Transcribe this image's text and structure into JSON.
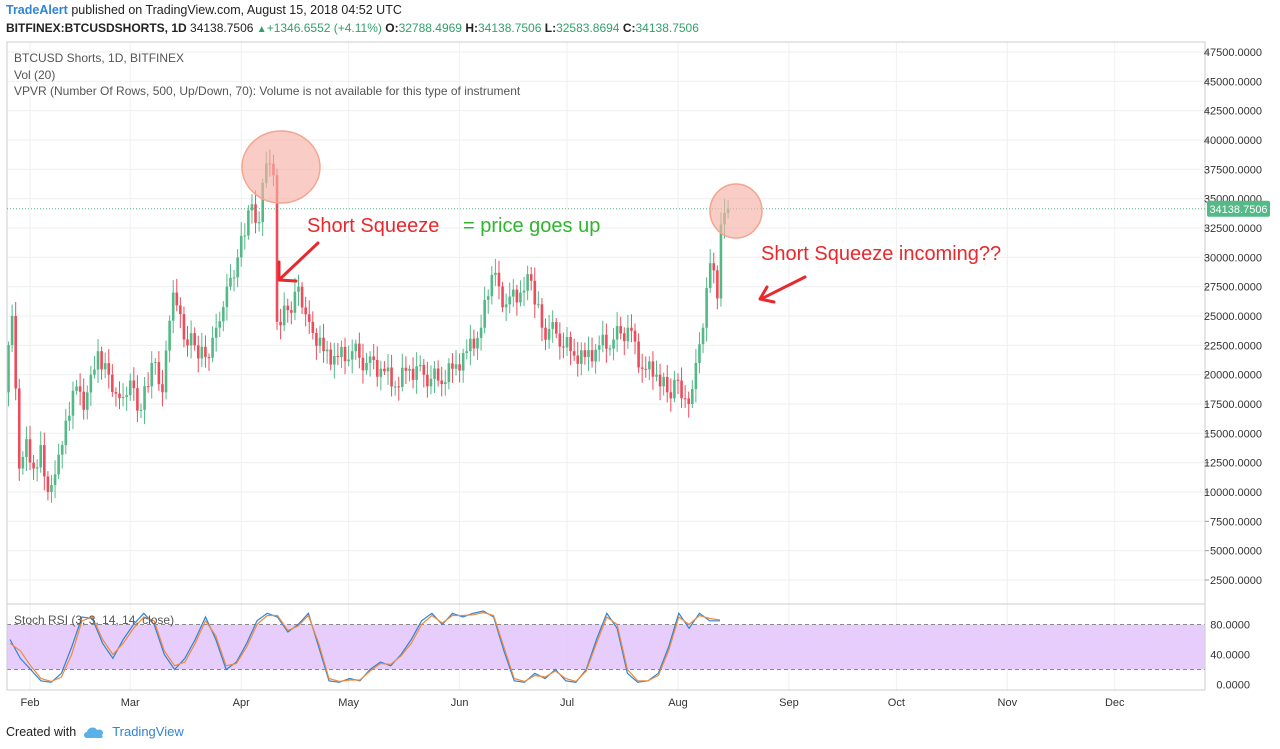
{
  "header": {
    "publisher": "TradeAlert",
    "published_text": "published on TradingView.com, August 15, 2018 04:52 UTC",
    "symbol": "BITFINEX:BTCUSDSHORTS, 1D",
    "last": "34138.7506",
    "change": "+1346.6552 (+4.11%)",
    "o_label": "O:",
    "o_value": "32788.4969",
    "h_label": "H:",
    "h_value": "34138.7506",
    "l_label": "L:",
    "l_value": "32583.8694",
    "c_label": "C:",
    "c_value": "34138.7506"
  },
  "legend": {
    "title": "BTCUSD Shorts, 1D, BITFINEX",
    "vol": "Vol (20)",
    "vpvr": "VPVR (Number Of Rows, 500, Up/Down, 70): Volume is not available for this type of instrument",
    "stoch": "Stoch RSI (3, 3, 14, 14, close)"
  },
  "annotations": {
    "squeeze_label": "Short Squeeze",
    "squeeze_eq": "= price goes up",
    "incoming": "Short Squeeze incoming??"
  },
  "footer": {
    "created_with": "Created with",
    "brand": "TradingView"
  },
  "colors": {
    "up": "#53b987",
    "down": "#eb4d5c",
    "annotation_red": "#e8282d",
    "annotation_green": "#2fb52f",
    "rsi_band": "#e3c4fb"
  },
  "chart_data": [
    {
      "type": "candlestick",
      "ylim": [
        0,
        48500
      ],
      "y_ticks": [
        "2500.0000",
        "5000.0000",
        "7500.0000",
        "10000.0000",
        "12500.0000",
        "15000.0000",
        "17500.0000",
        "20000.0000",
        "22500.0000",
        "25000.0000",
        "27500.0000",
        "30000.0000",
        "32500.0000",
        "35000.0000",
        "37500.0000",
        "40000.0000",
        "42500.0000",
        "45000.0000",
        "47500.0000"
      ],
      "x_ticks": [
        "Feb",
        "Mar",
        "Apr",
        "May",
        "Jun",
        "Jul",
        "Aug",
        "Sep",
        "Oct",
        "Nov",
        "Dec"
      ],
      "last_price_label": "34138.7506",
      "last_price": 34138.75,
      "approx_close_series": [
        {
          "x": "2018-01-25",
          "close": 18500
        },
        {
          "x": "2018-01-27",
          "close": 25000
        },
        {
          "x": "2018-01-29",
          "close": 12000
        },
        {
          "x": "2018-01-31",
          "close": 14500
        },
        {
          "x": "2018-02-02",
          "close": 12000
        },
        {
          "x": "2018-02-04",
          "close": 14000
        },
        {
          "x": "2018-02-06",
          "close": 10000
        },
        {
          "x": "2018-02-08",
          "close": 11500
        },
        {
          "x": "2018-02-10",
          "close": 14000
        },
        {
          "x": "2018-02-12",
          "close": 16500
        },
        {
          "x": "2018-02-14",
          "close": 19000
        },
        {
          "x": "2018-02-16",
          "close": 17000
        },
        {
          "x": "2018-02-18",
          "close": 20000
        },
        {
          "x": "2018-02-20",
          "close": 22000
        },
        {
          "x": "2018-02-23",
          "close": 20000
        },
        {
          "x": "2018-02-26",
          "close": 18000
        },
        {
          "x": "2018-03-01",
          "close": 19500
        },
        {
          "x": "2018-03-04",
          "close": 17000
        },
        {
          "x": "2018-03-07",
          "close": 21000
        },
        {
          "x": "2018-03-10",
          "close": 18500
        },
        {
          "x": "2018-03-13",
          "close": 27000
        },
        {
          "x": "2018-03-16",
          "close": 23000
        },
        {
          "x": "2018-03-19",
          "close": 22500
        },
        {
          "x": "2018-03-22",
          "close": 21500
        },
        {
          "x": "2018-03-25",
          "close": 24000
        },
        {
          "x": "2018-03-28",
          "close": 27500
        },
        {
          "x": "2018-03-31",
          "close": 30000
        },
        {
          "x": "2018-04-03",
          "close": 34000
        },
        {
          "x": "2018-04-06",
          "close": 33000
        },
        {
          "x": "2018-04-08",
          "close": 38000
        },
        {
          "x": "2018-04-10",
          "close": 37000
        },
        {
          "x": "2018-04-11",
          "close": 24500
        },
        {
          "x": "2018-04-14",
          "close": 25500
        },
        {
          "x": "2018-04-17",
          "close": 27500
        },
        {
          "x": "2018-04-20",
          "close": 24500
        },
        {
          "x": "2018-04-24",
          "close": 22000
        },
        {
          "x": "2018-04-28",
          "close": 21500
        },
        {
          "x": "2018-05-02",
          "close": 22000
        },
        {
          "x": "2018-05-06",
          "close": 21000
        },
        {
          "x": "2018-05-10",
          "close": 20500
        },
        {
          "x": "2018-05-14",
          "close": 19000
        },
        {
          "x": "2018-05-18",
          "close": 20500
        },
        {
          "x": "2018-05-22",
          "close": 20000
        },
        {
          "x": "2018-05-26",
          "close": 19500
        },
        {
          "x": "2018-05-30",
          "close": 20500
        },
        {
          "x": "2018-06-03",
          "close": 22000
        },
        {
          "x": "2018-06-07",
          "close": 24000
        },
        {
          "x": "2018-06-10",
          "close": 28500
        },
        {
          "x": "2018-06-14",
          "close": 26000
        },
        {
          "x": "2018-06-18",
          "close": 27000
        },
        {
          "x": "2018-06-21",
          "close": 28000
        },
        {
          "x": "2018-06-24",
          "close": 24000
        },
        {
          "x": "2018-06-28",
          "close": 23500
        },
        {
          "x": "2018-07-02",
          "close": 22000
        },
        {
          "x": "2018-07-06",
          "close": 21500
        },
        {
          "x": "2018-07-10",
          "close": 22500
        },
        {
          "x": "2018-07-14",
          "close": 23000
        },
        {
          "x": "2018-07-18",
          "close": 24000
        },
        {
          "x": "2018-07-22",
          "close": 20500
        },
        {
          "x": "2018-07-26",
          "close": 20000
        },
        {
          "x": "2018-07-29",
          "close": 18500
        },
        {
          "x": "2018-08-01",
          "close": 19500
        },
        {
          "x": "2018-08-04",
          "close": 17500
        },
        {
          "x": "2018-08-06",
          "close": 21000
        },
        {
          "x": "2018-08-08",
          "close": 24000
        },
        {
          "x": "2018-08-10",
          "close": 29500
        },
        {
          "x": "2018-08-12",
          "close": 26500
        },
        {
          "x": "2018-08-13",
          "close": 32800
        },
        {
          "x": "2018-08-15",
          "close": 34138.75
        }
      ]
    },
    {
      "type": "line",
      "title": "Stoch RSI (3, 3, 14, 14, close)",
      "ylim": [
        0,
        100
      ],
      "y_ticks": [
        "0.0000",
        "40.0000",
        "80.0000"
      ],
      "band": [
        20,
        80
      ],
      "series": [
        {
          "values": [
            60,
            35,
            20,
            5,
            3,
            15,
            50,
            90,
            88,
            55,
            35,
            60,
            80,
            95,
            80,
            40,
            20,
            35,
            60,
            90,
            60,
            20,
            30,
            55,
            85,
            95,
            90,
            70,
            80,
            95,
            50,
            5,
            3,
            8,
            5,
            20,
            30,
            25,
            40,
            60,
            85,
            95,
            80,
            95,
            90,
            95,
            98,
            90,
            45,
            5,
            3,
            15,
            8,
            20,
            5,
            3,
            20,
            60,
            95,
            75,
            15,
            3,
            5,
            15,
            50,
            95,
            75,
            95,
            85,
            85
          ]
        },
        {
          "values": [
            55,
            45,
            25,
            8,
            4,
            10,
            40,
            85,
            90,
            60,
            40,
            55,
            75,
            90,
            85,
            45,
            25,
            30,
            55,
            85,
            65,
            25,
            28,
            50,
            80,
            92,
            92,
            72,
            78,
            92,
            55,
            8,
            4,
            6,
            6,
            18,
            28,
            27,
            38,
            55,
            80,
            92,
            82,
            92,
            92,
            93,
            96,
            92,
            50,
            8,
            4,
            12,
            10,
            18,
            8,
            4,
            18,
            55,
            90,
            80,
            20,
            5,
            5,
            12,
            45,
            90,
            80,
            92,
            88,
            86
          ]
        }
      ]
    }
  ]
}
